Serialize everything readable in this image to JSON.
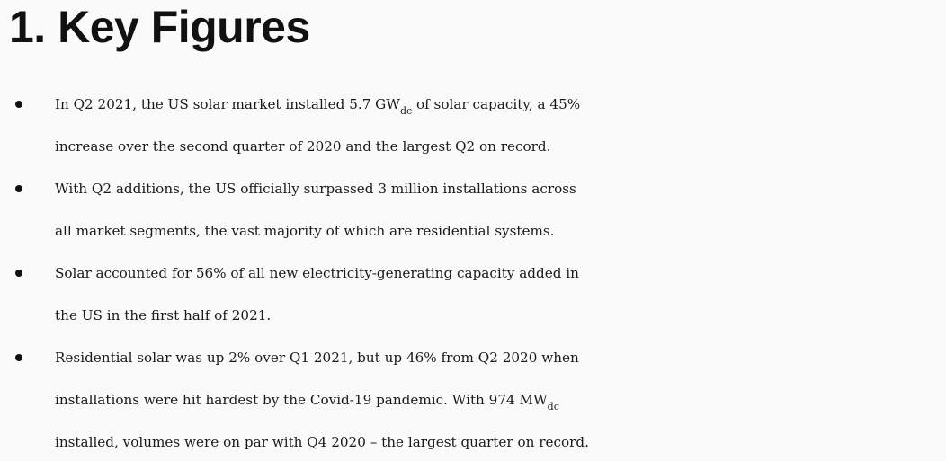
{
  "heading": "1. Key Figures",
  "bullets": [
    {
      "line1_pre": "In Q2 2021, the US solar market installed 5.7 GW",
      "line1_sub": "dc",
      "line1_post": " of solar capacity, a 45%",
      "line2": "increase over the second quarter of 2020 and the largest Q2 on record."
    },
    {
      "line1": "With Q2 additions, the US officially surpassed 3 million installations across",
      "line2": "all market segments, the vast majority of which are residential systems."
    },
    {
      "line1": "Solar accounted for 56% of all new electricity-generating capacity added in",
      "line2": "the US in the first half of 2021."
    },
    {
      "line1": "Residential solar was up 2% over Q1 2021, but up 46% from Q2 2020 when",
      "line2_pre": "installations were hit hardest by the Covid-19 pandemic. With 974 MW",
      "line2_sub": "dc",
      "line3": "installed, volumes were on par with Q4 2020 – the largest quarter on record."
    }
  ]
}
